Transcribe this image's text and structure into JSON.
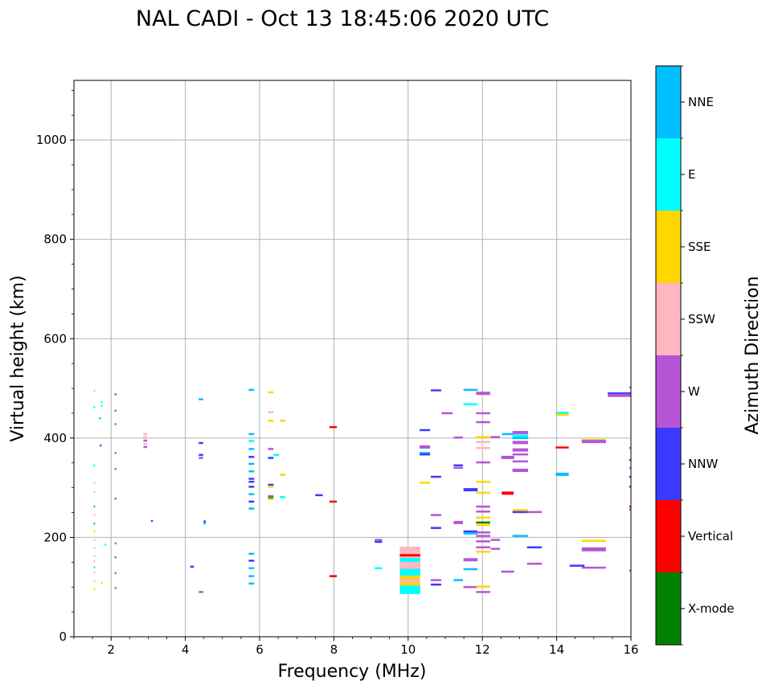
{
  "chart_data": {
    "type": "scatter",
    "title": "NAL CADI - Oct 13 18:45:06 2020 UTC",
    "xlabel": "Frequency (MHz)",
    "ylabel": "Virtual height (km)",
    "xlim": [
      1,
      16
    ],
    "ylim": [
      0,
      1120
    ],
    "xticks": [
      2,
      4,
      6,
      8,
      10,
      12,
      14,
      16
    ],
    "yticks": [
      0,
      200,
      400,
      600,
      800,
      1000
    ],
    "grid": true,
    "colorbar": {
      "title": "Azimuth Direction",
      "categories": [
        {
          "name": "X-mode",
          "color": "#008000"
        },
        {
          "name": "Vertical",
          "color": "#ff0000"
        },
        {
          "name": "NNW",
          "color": "#3a3aff"
        },
        {
          "name": "W",
          "color": "#b555d5"
        },
        {
          "name": "SSW",
          "color": "#ffb6c1"
        },
        {
          "name": "SSE",
          "color": "#ffd700"
        },
        {
          "name": "E",
          "color": "#00ffff"
        },
        {
          "name": "NNE",
          "color": "#00bfff"
        }
      ]
    },
    "points": [
      {
        "f": 1.55,
        "h": 495,
        "d": "SSW",
        "w": 0.03
      },
      {
        "f": 1.55,
        "h": 462,
        "d": "E",
        "w": 0.03
      },
      {
        "f": 1.55,
        "h": 345,
        "d": "E",
        "w": 0.03
      },
      {
        "f": 1.55,
        "h": 310,
        "d": "SSW",
        "w": 0.03
      },
      {
        "f": 1.55,
        "h": 292,
        "d": "SSW",
        "w": 0.03
      },
      {
        "f": 1.55,
        "h": 262,
        "d": "NNE",
        "w": 0.03
      },
      {
        "f": 1.55,
        "h": 245,
        "d": "SSW",
        "w": 0.03
      },
      {
        "f": 1.55,
        "h": 228,
        "d": "NNE",
        "w": 0.03
      },
      {
        "f": 1.55,
        "h": 212,
        "d": "SSE",
        "w": 0.03
      },
      {
        "f": 1.55,
        "h": 195,
        "d": "SSW",
        "w": 0.03
      },
      {
        "f": 1.55,
        "h": 178,
        "d": "SSW",
        "w": 0.03
      },
      {
        "f": 1.55,
        "h": 162,
        "d": "SSW",
        "w": 0.03
      },
      {
        "f": 1.55,
        "h": 152,
        "d": "SSW",
        "w": 0.03
      },
      {
        "f": 1.55,
        "h": 140,
        "d": "E",
        "w": 0.03
      },
      {
        "f": 1.55,
        "h": 130,
        "d": "SSW",
        "w": 0.03
      },
      {
        "f": 1.55,
        "h": 112,
        "d": "SSW",
        "w": 0.03
      },
      {
        "f": 1.55,
        "h": 96,
        "d": "SSE",
        "w": 0.03
      },
      {
        "f": 1.75,
        "h": 472,
        "d": "E",
        "w": 0.03
      },
      {
        "f": 1.75,
        "h": 465,
        "d": "E",
        "w": 0.03
      },
      {
        "f": 1.7,
        "h": 440,
        "d": "NNE",
        "w": 0.03
      },
      {
        "f": 1.72,
        "h": 385,
        "d": "NNW",
        "w": 0.03
      },
      {
        "f": 1.85,
        "h": 185,
        "d": "E",
        "w": 0.03
      },
      {
        "f": 1.75,
        "h": 108,
        "d": "SSE",
        "w": 0.03
      },
      {
        "f": 2.12,
        "h": 488,
        "d": "W",
        "w": 0.06
      },
      {
        "f": 2.12,
        "h": 455,
        "d": "W",
        "w": 0.05
      },
      {
        "f": 2.12,
        "h": 428,
        "d": "W",
        "w": 0.05
      },
      {
        "f": 2.12,
        "h": 370,
        "d": "W",
        "w": 0.05
      },
      {
        "f": 2.12,
        "h": 338,
        "d": "W",
        "w": 0.05
      },
      {
        "f": 2.12,
        "h": 278,
        "d": "W",
        "w": 0.05
      },
      {
        "f": 2.12,
        "h": 188,
        "d": "W",
        "w": 0.05
      },
      {
        "f": 2.12,
        "h": 160,
        "d": "W",
        "w": 0.05
      },
      {
        "f": 2.12,
        "h": 128,
        "d": "W",
        "w": 0.05
      },
      {
        "f": 2.12,
        "h": 98,
        "d": "W",
        "w": 0.05
      },
      {
        "f": 2.92,
        "h": 408,
        "d": "SSW",
        "w": 0.1
      },
      {
        "f": 2.92,
        "h": 402,
        "d": "SSW",
        "w": 0.1
      },
      {
        "f": 2.92,
        "h": 395,
        "d": "W",
        "w": 0.1
      },
      {
        "f": 2.92,
        "h": 388,
        "d": "SSW",
        "w": 0.1
      },
      {
        "f": 2.92,
        "h": 382,
        "d": "W",
        "w": 0.1
      },
      {
        "f": 3.1,
        "h": 233,
        "d": "NNW",
        "w": 0.05
      },
      {
        "f": 4.18,
        "h": 141,
        "d": "NNW",
        "w": 0.1
      },
      {
        "f": 4.42,
        "h": 478,
        "d": "NNE",
        "w": 0.12
      },
      {
        "f": 4.42,
        "h": 390,
        "d": "NNW",
        "w": 0.12
      },
      {
        "f": 4.42,
        "h": 366,
        "d": "NNW",
        "w": 0.12
      },
      {
        "f": 4.42,
        "h": 360,
        "d": "W",
        "w": 0.12
      },
      {
        "f": 4.52,
        "h": 232,
        "d": "NNW",
        "w": 0.06
      },
      {
        "f": 4.52,
        "h": 228,
        "d": "NNE",
        "w": 0.06
      },
      {
        "f": 4.42,
        "h": 90,
        "d": "W",
        "w": 0.12
      },
      {
        "f": 5.78,
        "h": 497,
        "d": "NNE",
        "w": 0.15
      },
      {
        "f": 5.78,
        "h": 408,
        "d": "NNE",
        "w": 0.15
      },
      {
        "f": 5.78,
        "h": 394,
        "d": "E",
        "w": 0.15
      },
      {
        "f": 5.78,
        "h": 378,
        "d": "NNE",
        "w": 0.15
      },
      {
        "f": 5.78,
        "h": 362,
        "d": "NNW",
        "w": 0.15
      },
      {
        "f": 5.78,
        "h": 348,
        "d": "NNE",
        "w": 0.15
      },
      {
        "f": 5.78,
        "h": 333,
        "d": "NNE",
        "w": 0.15
      },
      {
        "f": 5.78,
        "h": 318,
        "d": "NNW",
        "w": 0.15
      },
      {
        "f": 5.78,
        "h": 312,
        "d": "NNW",
        "w": 0.15
      },
      {
        "f": 5.78,
        "h": 302,
        "d": "NNW",
        "w": 0.15
      },
      {
        "f": 5.78,
        "h": 287,
        "d": "NNE",
        "w": 0.15
      },
      {
        "f": 5.78,
        "h": 272,
        "d": "NNW",
        "w": 0.15
      },
      {
        "f": 5.78,
        "h": 258,
        "d": "NNE",
        "w": 0.15
      },
      {
        "f": 5.78,
        "h": 167,
        "d": "NNE",
        "w": 0.15
      },
      {
        "f": 5.78,
        "h": 153,
        "d": "NNW",
        "w": 0.15
      },
      {
        "f": 5.78,
        "h": 138,
        "d": "NNE",
        "w": 0.15
      },
      {
        "f": 5.78,
        "h": 122,
        "d": "NNE",
        "w": 0.15
      },
      {
        "f": 5.78,
        "h": 107,
        "d": "NNE",
        "w": 0.15
      },
      {
        "f": 6.3,
        "h": 492,
        "d": "SSE",
        "w": 0.15
      },
      {
        "f": 6.3,
        "h": 452,
        "d": "SSW",
        "w": 0.15
      },
      {
        "f": 6.3,
        "h": 435,
        "d": "SSE",
        "w": 0.15
      },
      {
        "f": 6.3,
        "h": 378,
        "d": "W",
        "w": 0.15
      },
      {
        "f": 6.3,
        "h": 360,
        "d": "NNW",
        "w": 0.15
      },
      {
        "f": 6.3,
        "h": 306,
        "d": "NNW",
        "w": 0.15
      },
      {
        "f": 6.3,
        "h": 302,
        "d": "SSE",
        "w": 0.15
      },
      {
        "f": 6.3,
        "h": 283,
        "d": "W",
        "w": 0.15
      },
      {
        "f": 6.3,
        "h": 279,
        "d": "X-mode",
        "w": 0.15
      },
      {
        "f": 6.3,
        "h": 277,
        "d": "SSE",
        "w": 0.15
      },
      {
        "f": 6.45,
        "h": 366,
        "d": "E",
        "w": 0.15
      },
      {
        "f": 6.62,
        "h": 435,
        "d": "SSE",
        "w": 0.15
      },
      {
        "f": 6.62,
        "h": 326,
        "d": "SSE",
        "w": 0.15
      },
      {
        "f": 6.62,
        "h": 281,
        "d": "E",
        "w": 0.15
      },
      {
        "f": 7.6,
        "h": 285,
        "d": "NNW",
        "w": 0.2
      },
      {
        "f": 7.98,
        "h": 422,
        "d": "Vertical",
        "w": 0.2
      },
      {
        "f": 7.98,
        "h": 272,
        "d": "Vertical",
        "w": 0.2
      },
      {
        "f": 7.98,
        "h": 122,
        "d": "Vertical",
        "w": 0.2
      },
      {
        "f": 9.2,
        "h": 195,
        "d": "W",
        "w": 0.2
      },
      {
        "f": 9.2,
        "h": 191,
        "d": "NNW",
        "w": 0.2
      },
      {
        "f": 9.2,
        "h": 138,
        "d": "E",
        "w": 0.2
      },
      {
        "f": 10.05,
        "h": 173,
        "d": "SSW",
        "w": 0.55,
        "t": 10
      },
      {
        "f": 10.05,
        "h": 163,
        "d": "SSW",
        "w": 0.55,
        "t": 6
      },
      {
        "f": 10.05,
        "h": 164,
        "d": "Vertical",
        "w": 0.55,
        "t": 3
      },
      {
        "f": 10.05,
        "h": 153,
        "d": "E",
        "w": 0.55,
        "t": 7
      },
      {
        "f": 10.05,
        "h": 146,
        "d": "SSW",
        "w": 0.55,
        "t": 6
      },
      {
        "f": 10.05,
        "h": 139,
        "d": "SSW",
        "w": 0.55,
        "t": 6
      },
      {
        "f": 10.05,
        "h": 132,
        "d": "E",
        "w": 0.55,
        "t": 6
      },
      {
        "f": 10.05,
        "h": 125,
        "d": "E",
        "w": 0.55,
        "t": 5
      },
      {
        "f": 10.05,
        "h": 119,
        "d": "SSE",
        "w": 0.55,
        "t": 5
      },
      {
        "f": 10.05,
        "h": 112,
        "d": "SSW",
        "w": 0.55,
        "t": 5
      },
      {
        "f": 10.05,
        "h": 105,
        "d": "SSE",
        "w": 0.55,
        "t": 5
      },
      {
        "f": 10.05,
        "h": 98,
        "d": "E",
        "w": 0.55,
        "t": 6
      },
      {
        "f": 10.05,
        "h": 91,
        "d": "E",
        "w": 0.55,
        "t": 6
      },
      {
        "f": 10.45,
        "h": 416,
        "d": "NNW",
        "w": 0.28
      },
      {
        "f": 10.45,
        "h": 382,
        "d": "W",
        "w": 0.28,
        "t": 4
      },
      {
        "f": 10.45,
        "h": 370,
        "d": "NNE",
        "w": 0.28
      },
      {
        "f": 10.45,
        "h": 367,
        "d": "NNW",
        "w": 0.28
      },
      {
        "f": 10.45,
        "h": 310,
        "d": "SSE",
        "w": 0.28
      },
      {
        "f": 10.75,
        "h": 496,
        "d": "NNW",
        "w": 0.28
      },
      {
        "f": 10.75,
        "h": 322,
        "d": "NNW",
        "w": 0.28
      },
      {
        "f": 10.75,
        "h": 245,
        "d": "W",
        "w": 0.28
      },
      {
        "f": 10.75,
        "h": 219,
        "d": "NNW",
        "w": 0.28
      },
      {
        "f": 10.75,
        "h": 114,
        "d": "W",
        "w": 0.28
      },
      {
        "f": 10.75,
        "h": 105,
        "d": "NNW",
        "w": 0.28
      },
      {
        "f": 11.05,
        "h": 450,
        "d": "W",
        "w": 0.3
      },
      {
        "f": 11.35,
        "h": 401,
        "d": "W",
        "w": 0.25
      },
      {
        "f": 11.35,
        "h": 345,
        "d": "NNW",
        "w": 0.25
      },
      {
        "f": 11.35,
        "h": 340,
        "d": "W",
        "w": 0.25
      },
      {
        "f": 11.35,
        "h": 230,
        "d": "W",
        "w": 0.25,
        "t": 4
      },
      {
        "f": 11.35,
        "h": 114,
        "d": "NNE",
        "w": 0.25
      },
      {
        "f": 11.68,
        "h": 497,
        "d": "NNE",
        "w": 0.38
      },
      {
        "f": 11.68,
        "h": 468,
        "d": "E",
        "w": 0.38
      },
      {
        "f": 11.68,
        "h": 296,
        "d": "NNW",
        "w": 0.38,
        "t": 4
      },
      {
        "f": 11.68,
        "h": 212,
        "d": "NNW",
        "w": 0.38
      },
      {
        "f": 11.68,
        "h": 208,
        "d": "NNE",
        "w": 0.38
      },
      {
        "f": 11.68,
        "h": 155,
        "d": "W",
        "w": 0.38,
        "t": 4
      },
      {
        "f": 11.68,
        "h": 136,
        "d": "NNE",
        "w": 0.38
      },
      {
        "f": 11.68,
        "h": 100,
        "d": "W",
        "w": 0.38
      },
      {
        "f": 12.02,
        "h": 490,
        "d": "W",
        "w": 0.38,
        "t": 4
      },
      {
        "f": 12.02,
        "h": 450,
        "d": "W",
        "w": 0.38
      },
      {
        "f": 12.02,
        "h": 432,
        "d": "W",
        "w": 0.38
      },
      {
        "f": 12.02,
        "h": 402,
        "d": "SSE",
        "w": 0.38
      },
      {
        "f": 12.02,
        "h": 392,
        "d": "SSW",
        "w": 0.38
      },
      {
        "f": 12.02,
        "h": 380,
        "d": "SSW",
        "w": 0.38
      },
      {
        "f": 12.02,
        "h": 351,
        "d": "W",
        "w": 0.38
      },
      {
        "f": 12.02,
        "h": 312,
        "d": "SSE",
        "w": 0.38
      },
      {
        "f": 12.02,
        "h": 290,
        "d": "SSE",
        "w": 0.38
      },
      {
        "f": 12.02,
        "h": 262,
        "d": "W",
        "w": 0.38
      },
      {
        "f": 12.02,
        "h": 252,
        "d": "W",
        "w": 0.38
      },
      {
        "f": 12.02,
        "h": 240,
        "d": "SSE",
        "w": 0.38
      },
      {
        "f": 12.02,
        "h": 230,
        "d": "X-mode",
        "w": 0.38
      },
      {
        "f": 12.02,
        "h": 225,
        "d": "SSE",
        "w": 0.38
      },
      {
        "f": 12.02,
        "h": 210,
        "d": "W",
        "w": 0.38
      },
      {
        "f": 12.02,
        "h": 203,
        "d": "W",
        "w": 0.38
      },
      {
        "f": 12.02,
        "h": 192,
        "d": "W",
        "w": 0.38
      },
      {
        "f": 12.02,
        "h": 180,
        "d": "W",
        "w": 0.38
      },
      {
        "f": 12.02,
        "h": 171,
        "d": "SSE",
        "w": 0.38
      },
      {
        "f": 12.02,
        "h": 101,
        "d": "SSE",
        "w": 0.38
      },
      {
        "f": 12.02,
        "h": 90,
        "d": "W",
        "w": 0.38
      },
      {
        "f": 12.35,
        "h": 402,
        "d": "W",
        "w": 0.25
      },
      {
        "f": 12.35,
        "h": 195,
        "d": "W",
        "w": 0.25
      },
      {
        "f": 12.35,
        "h": 177,
        "d": "W",
        "w": 0.25
      },
      {
        "f": 12.68,
        "h": 408,
        "d": "NNE",
        "w": 0.3
      },
      {
        "f": 12.68,
        "h": 361,
        "d": "W",
        "w": 0.35,
        "t": 4
      },
      {
        "f": 12.68,
        "h": 289,
        "d": "Vertical",
        "w": 0.32,
        "t": 4
      },
      {
        "f": 12.68,
        "h": 131,
        "d": "W",
        "w": 0.35
      },
      {
        "f": 13.02,
        "h": 411,
        "d": "W",
        "w": 0.42,
        "t": 4
      },
      {
        "f": 13.02,
        "h": 404,
        "d": "E",
        "w": 0.42,
        "t": 4
      },
      {
        "f": 13.02,
        "h": 400,
        "d": "NNE",
        "w": 0.42
      },
      {
        "f": 13.02,
        "h": 391,
        "d": "W",
        "w": 0.42,
        "t": 4
      },
      {
        "f": 13.02,
        "h": 376,
        "d": "W",
        "w": 0.42,
        "t": 4
      },
      {
        "f": 13.02,
        "h": 367,
        "d": "W",
        "w": 0.42
      },
      {
        "f": 13.02,
        "h": 353,
        "d": "W",
        "w": 0.42
      },
      {
        "f": 13.02,
        "h": 335,
        "d": "W",
        "w": 0.42,
        "t": 4
      },
      {
        "f": 13.02,
        "h": 255,
        "d": "SSE",
        "w": 0.42
      },
      {
        "f": 13.02,
        "h": 251,
        "d": "NNW",
        "w": 0.42
      },
      {
        "f": 13.02,
        "h": 203,
        "d": "NNE",
        "w": 0.42
      },
      {
        "f": 13.4,
        "h": 251,
        "d": "W",
        "w": 0.4
      },
      {
        "f": 13.4,
        "h": 180,
        "d": "NNW",
        "w": 0.4
      },
      {
        "f": 13.4,
        "h": 147,
        "d": "W",
        "w": 0.4
      },
      {
        "f": 14.15,
        "h": 451,
        "d": "E",
        "w": 0.35
      },
      {
        "f": 14.15,
        "h": 447,
        "d": "SSE",
        "w": 0.35
      },
      {
        "f": 14.15,
        "h": 381,
        "d": "Vertical",
        "w": 0.35
      },
      {
        "f": 14.15,
        "h": 327,
        "d": "NNE",
        "w": 0.35,
        "t": 4
      },
      {
        "f": 14.55,
        "h": 143,
        "d": "NNW",
        "w": 0.4
      },
      {
        "f": 15.0,
        "h": 396,
        "d": "SSE",
        "w": 0.65
      },
      {
        "f": 15.0,
        "h": 393,
        "d": "W",
        "w": 0.65,
        "t": 4
      },
      {
        "f": 15.0,
        "h": 193,
        "d": "SSE",
        "w": 0.65
      },
      {
        "f": 15.0,
        "h": 176,
        "d": "W",
        "w": 0.65,
        "t": 5
      },
      {
        "f": 15.0,
        "h": 139,
        "d": "W",
        "w": 0.65
      },
      {
        "f": 15.7,
        "h": 490,
        "d": "NNW",
        "w": 0.65
      },
      {
        "f": 15.7,
        "h": 486,
        "d": "W",
        "w": 0.65,
        "t": 4
      },
      {
        "f": 15.98,
        "h": 502,
        "d": "W",
        "w": 0.05
      },
      {
        "f": 15.98,
        "h": 380,
        "d": "W",
        "w": 0.05
      },
      {
        "f": 15.98,
        "h": 356,
        "d": "NNW",
        "w": 0.05
      },
      {
        "f": 15.98,
        "h": 340,
        "d": "W",
        "w": 0.05
      },
      {
        "f": 15.98,
        "h": 322,
        "d": "NNW",
        "w": 0.05
      },
      {
        "f": 15.98,
        "h": 302,
        "d": "NNW",
        "w": 0.05
      },
      {
        "f": 15.98,
        "h": 262,
        "d": "Vertical",
        "w": 0.05
      },
      {
        "f": 15.98,
        "h": 256,
        "d": "W",
        "w": 0.05
      },
      {
        "f": 15.98,
        "h": 133,
        "d": "W",
        "w": 0.05
      }
    ]
  }
}
